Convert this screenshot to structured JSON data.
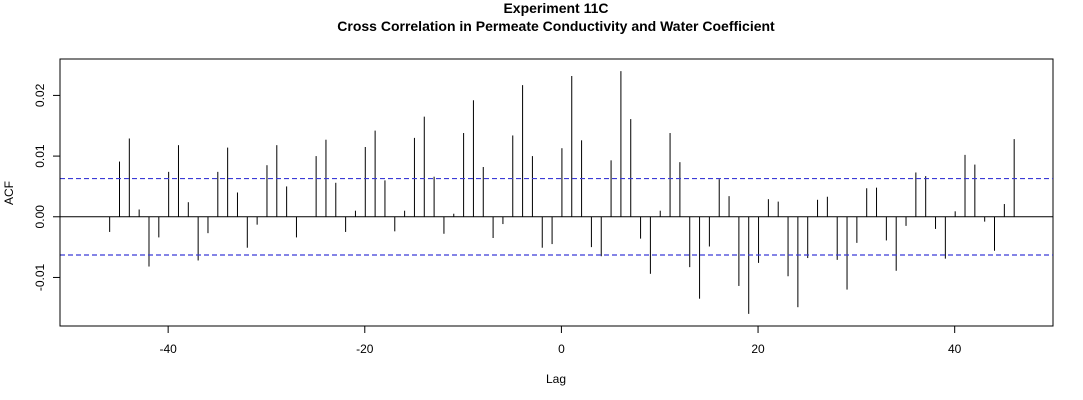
{
  "chart_data": {
    "type": "bar",
    "title": "Experiment  11C",
    "subtitle": "Cross Correlation in Permeate Conductivity and Water Coefficient",
    "xlabel": "Lag",
    "ylabel": "ACF",
    "xlim": [
      -51,
      50
    ],
    "ylim": [
      -0.018,
      0.026
    ],
    "x_ticks": [
      -40,
      -20,
      0,
      20,
      40
    ],
    "y_ticks": [
      -0.01,
      0.0,
      0.01,
      0.02
    ],
    "x_tick_labels": [
      "-40",
      "-20",
      "0",
      "20",
      "40"
    ],
    "y_tick_labels": [
      "-0.01",
      "0.00",
      "0.01",
      "0.02"
    ],
    "confidence_band": 0.0063,
    "colors": {
      "bars": "#000000",
      "confidence": "#3b3bd6",
      "axis": "#000000"
    },
    "lags": [
      -46,
      -45,
      -44,
      -43,
      -42,
      -41,
      -40,
      -39,
      -38,
      -37,
      -36,
      -35,
      -34,
      -33,
      -32,
      -31,
      -30,
      -29,
      -28,
      -27,
      -26,
      -25,
      -24,
      -23,
      -22,
      -21,
      -20,
      -19,
      -18,
      -17,
      -16,
      -15,
      -14,
      -13,
      -12,
      -11,
      -10,
      -9,
      -8,
      -7,
      -6,
      -5,
      -4,
      -3,
      -2,
      -1,
      0,
      1,
      2,
      3,
      4,
      5,
      6,
      7,
      8,
      9,
      10,
      11,
      12,
      13,
      14,
      15,
      16,
      17,
      18,
      19,
      20,
      21,
      22,
      23,
      24,
      25,
      26,
      27,
      28,
      29,
      30,
      31,
      32,
      33,
      34,
      35,
      36,
      37,
      38,
      39,
      40,
      41,
      42,
      43,
      44,
      45,
      46
    ],
    "values": [
      -0.0025,
      0.0091,
      0.0129,
      0.0012,
      -0.0082,
      -0.0034,
      0.0074,
      0.0118,
      0.0024,
      -0.0072,
      -0.0027,
      0.0074,
      0.0114,
      0.004,
      -0.0051,
      -0.0013,
      0.0085,
      0.0118,
      0.005,
      -0.0034,
      0.0,
      0.01,
      0.0127,
      0.0056,
      -0.0025,
      0.001,
      0.0115,
      0.0142,
      0.006,
      -0.0024,
      0.001,
      0.013,
      0.0165,
      0.0066,
      -0.0028,
      0.0005,
      0.0138,
      0.0192,
      0.0082,
      -0.0035,
      -0.0012,
      0.0134,
      0.0217,
      0.01,
      -0.0051,
      -0.0045,
      0.0113,
      0.0232,
      0.0126,
      -0.005,
      -0.0065,
      0.0093,
      0.024,
      0.0161,
      -0.0036,
      -0.0094,
      0.001,
      0.0138,
      0.009,
      -0.0083,
      -0.0135,
      -0.0049,
      0.0062,
      0.0034,
      -0.0114,
      -0.016,
      -0.0076,
      0.0029,
      0.0025,
      -0.0098,
      -0.0149,
      -0.0068,
      0.0028,
      0.0033,
      -0.0071,
      -0.012,
      -0.0043,
      0.0047,
      0.0048,
      -0.0039,
      -0.0089,
      -0.0015,
      0.0073,
      0.0067,
      -0.002,
      -0.0069,
      0.0009,
      0.0102,
      0.0086,
      -0.0008,
      -0.0056,
      0.0021,
      0.0128
    ]
  }
}
